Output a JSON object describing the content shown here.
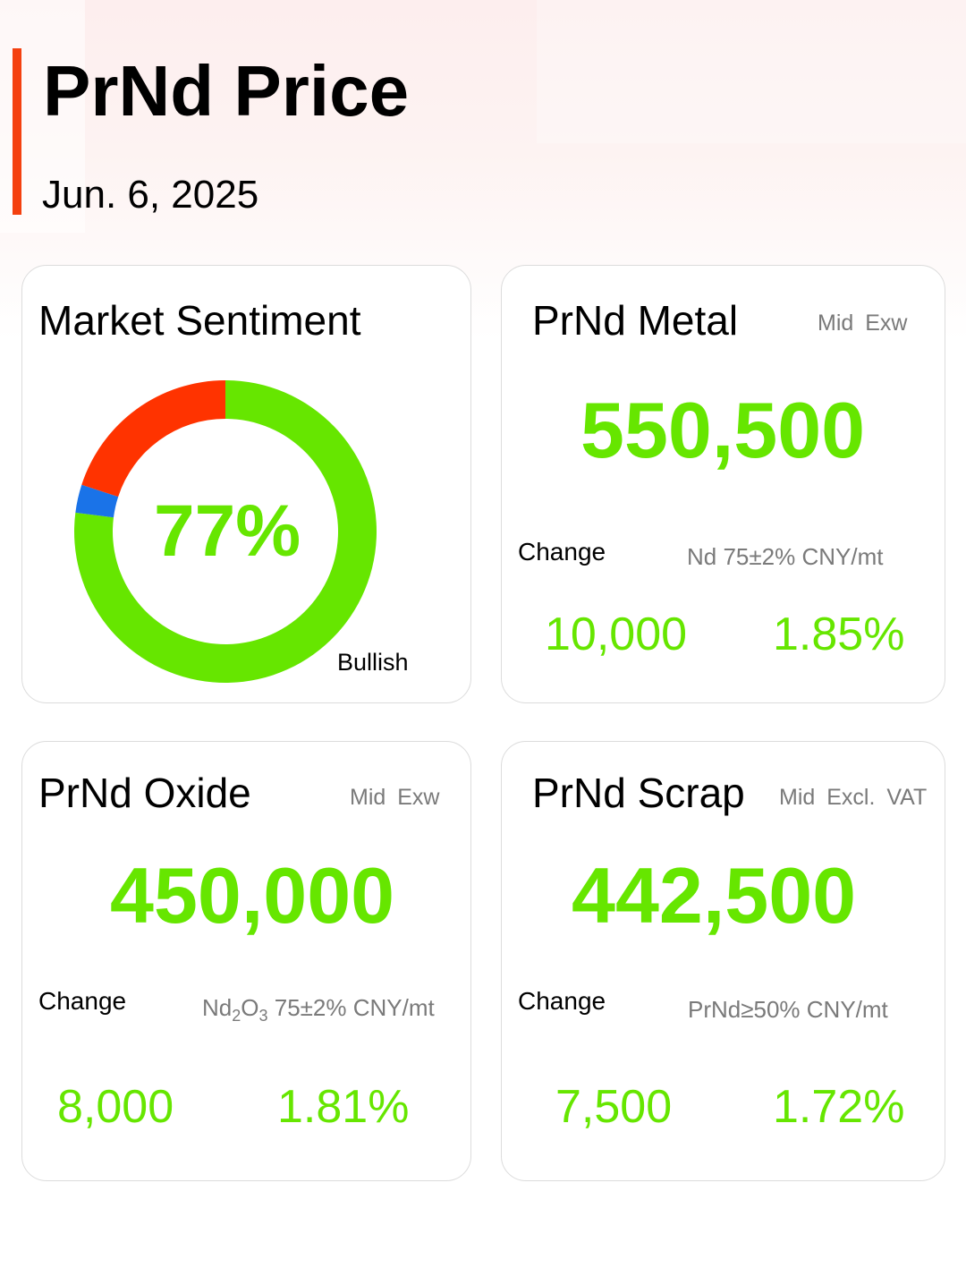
{
  "header": {
    "title": "PrNd Price",
    "date": "Jun. 6, 2025",
    "accent_color": "#f4400f"
  },
  "sentiment": {
    "title": "Market Sentiment",
    "percent_label": "77%",
    "label": "Bullish",
    "segments": [
      {
        "name": "bullish",
        "percent": 77,
        "color": "#66e600"
      },
      {
        "name": "neutral",
        "percent": 3,
        "color": "#1a73e8"
      },
      {
        "name": "bearish",
        "percent": 20,
        "color": "#ff3300"
      }
    ]
  },
  "metal": {
    "title": "PrNd Metal",
    "tag": "Mid Exw",
    "price": "550,500",
    "change_label": "Change",
    "spec": "Nd 75±2% CNY/mt",
    "change_value": "10,000",
    "change_percent": "1.85%"
  },
  "oxide": {
    "title": "PrNd Oxide",
    "tag": "Mid Exw",
    "price": "450,000",
    "change_label": "Change",
    "spec_prefix": "Nd",
    "spec_sub1": "2",
    "spec_mid": "O",
    "spec_sub2": "3",
    "spec_suffix": " 75±2% CNY/mt",
    "change_value": "8,000",
    "change_percent": "1.81%"
  },
  "scrap": {
    "title": "PrNd Scrap",
    "tag": "Mid Excl. VAT",
    "price": "442,500",
    "change_label": "Change",
    "spec": "PrNd≥50% CNY/mt",
    "change_value": "7,500",
    "change_percent": "1.72%"
  },
  "colors": {
    "positive": "#66e600",
    "muted": "#7a7a7a",
    "card_border": "#dcdcdc"
  }
}
